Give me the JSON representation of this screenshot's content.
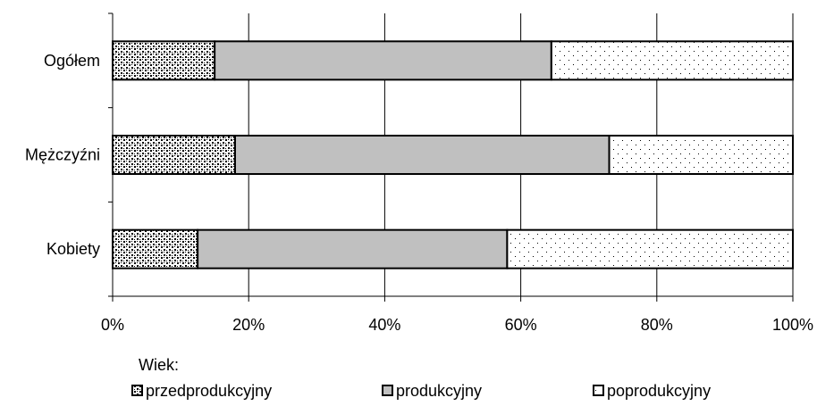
{
  "chart_data": {
    "type": "bar",
    "orientation": "horizontal",
    "stacked": "percent",
    "categories": [
      "Ogółem",
      "Mężczyźni",
      "Kobiety"
    ],
    "series": [
      {
        "name": "przedprodukcyjny",
        "values": [
          15,
          18,
          12.5
        ],
        "pattern": "dense-dots"
      },
      {
        "name": "produkcyjny",
        "values": [
          49.5,
          55,
          45.5
        ],
        "color": "#c0c0c0"
      },
      {
        "name": "poprodukcyjny",
        "values": [
          35.5,
          27,
          42
        ],
        "pattern": "sparse-dots"
      }
    ],
    "x_ticks": [
      "0%",
      "20%",
      "40%",
      "60%",
      "80%",
      "100%"
    ],
    "xlim": [
      0,
      100
    ],
    "grid": "vertical",
    "legend": {
      "title": "Wiek:",
      "placement": "bottom"
    }
  }
}
